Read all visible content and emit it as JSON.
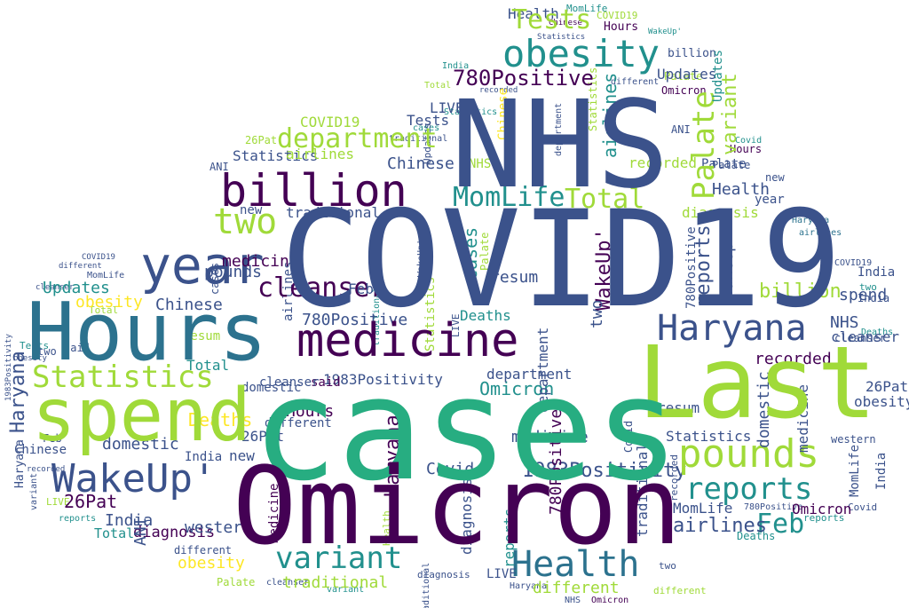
{
  "cloud": {
    "words": {
      "nhs": "NHS",
      "covid19": "COVID19",
      "cases": "cases",
      "omicron": "Omicron",
      "last": "Last",
      "hours": "Hours",
      "medicine": "medicine",
      "spend": "spend",
      "pounds": "pounds",
      "wakeup": "WakeUp'",
      "obesity": "obesity",
      "billion": "billion",
      "year": "year",
      "two": "two",
      "tests": "Tests",
      "positive_780": "780Positive",
      "department": "department",
      "momlife": "MomLife",
      "total": "Total",
      "palate": "Palate",
      "health": "Health",
      "variant": "variant",
      "reports": "reports",
      "haryana": "Haryana",
      "cleanser": "cleanser",
      "statistics": "Statistics",
      "feb": "Feb",
      "chinese": "Chinese",
      "updates": "Updates",
      "ani": "ANI",
      "positivity_1983": "1983Positivity",
      "pat_26": "26Pat",
      "india": "India",
      "deaths": "Deaths",
      "different": "different",
      "traditional": "traditional",
      "diagnosis": "diagnosis",
      "domestic": "domestic",
      "western": "western",
      "recorded": "recorded",
      "airlines": "airlines",
      "covid": "Covid",
      "resum": "resum",
      "live": "LIVE",
      "new": "new",
      "said": "said"
    }
  },
  "palette": [
    "#440154",
    "#3b528b",
    "#21908d",
    "#5dc963",
    "#a0da39",
    "#fde725",
    "#2c728e",
    "#472d7b",
    "#27ad81"
  ]
}
